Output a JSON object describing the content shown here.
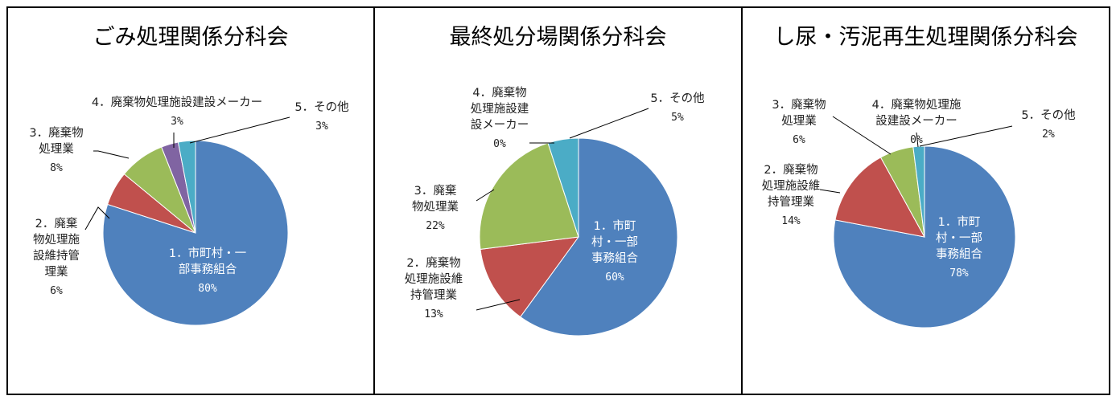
{
  "colors": [
    "#4f81bd",
    "#c0504d",
    "#9bbb59",
    "#8064a2",
    "#4bacc6"
  ],
  "chart_data": [
    {
      "type": "pie",
      "title": "ごみ処理関係分科会",
      "slices": [
        {
          "label": [
            "1．市町村・一",
            "部事務組合"
          ],
          "value": 80,
          "pct_text": "80%"
        },
        {
          "label": [
            "2．廃棄",
            "物処理施",
            "設維持管",
            "理業"
          ],
          "value": 6,
          "pct_text": "6%"
        },
        {
          "label": [
            "3．廃棄物",
            "処理業"
          ],
          "value": 8,
          "pct_text": "8%"
        },
        {
          "label": [
            "4．廃棄物処理施設建設メーカー"
          ],
          "value": 3,
          "pct_text": "3%"
        },
        {
          "label": [
            "5．その他"
          ],
          "value": 3,
          "pct_text": "3%"
        }
      ]
    },
    {
      "type": "pie",
      "title": "最終処分場関係分科会",
      "slices": [
        {
          "label": [
            "1．市町",
            "村・一部",
            "事務組合"
          ],
          "value": 60,
          "pct_text": "60%"
        },
        {
          "label": [
            "2．廃棄物",
            "処理施設維",
            "持管理業"
          ],
          "value": 13,
          "pct_text": "13%"
        },
        {
          "label": [
            "3．廃棄",
            "物処理業"
          ],
          "value": 22,
          "pct_text": "22%"
        },
        {
          "label": [
            "4．廃棄物",
            "処理施設建",
            "設メーカー"
          ],
          "value": 0,
          "pct_text": "0%"
        },
        {
          "label": [
            "5．その他"
          ],
          "value": 5,
          "pct_text": "5%"
        }
      ]
    },
    {
      "type": "pie",
      "title": "し尿・汚泥再生処理関係分科会",
      "slices": [
        {
          "label": [
            "1．市町",
            "村・一部",
            "事務組合"
          ],
          "value": 78,
          "pct_text": "78%"
        },
        {
          "label": [
            "2．廃棄物",
            "処理施設維",
            "持管理業"
          ],
          "value": 14,
          "pct_text": "14%"
        },
        {
          "label": [
            "3．廃棄物",
            "処理業"
          ],
          "value": 6,
          "pct_text": "6%"
        },
        {
          "label": [
            "4．廃棄物処理施",
            "設建設メーカー"
          ],
          "value": 0,
          "pct_text": "0%"
        },
        {
          "label": [
            "5．その他"
          ],
          "value": 2,
          "pct_text": "2%"
        }
      ]
    }
  ]
}
